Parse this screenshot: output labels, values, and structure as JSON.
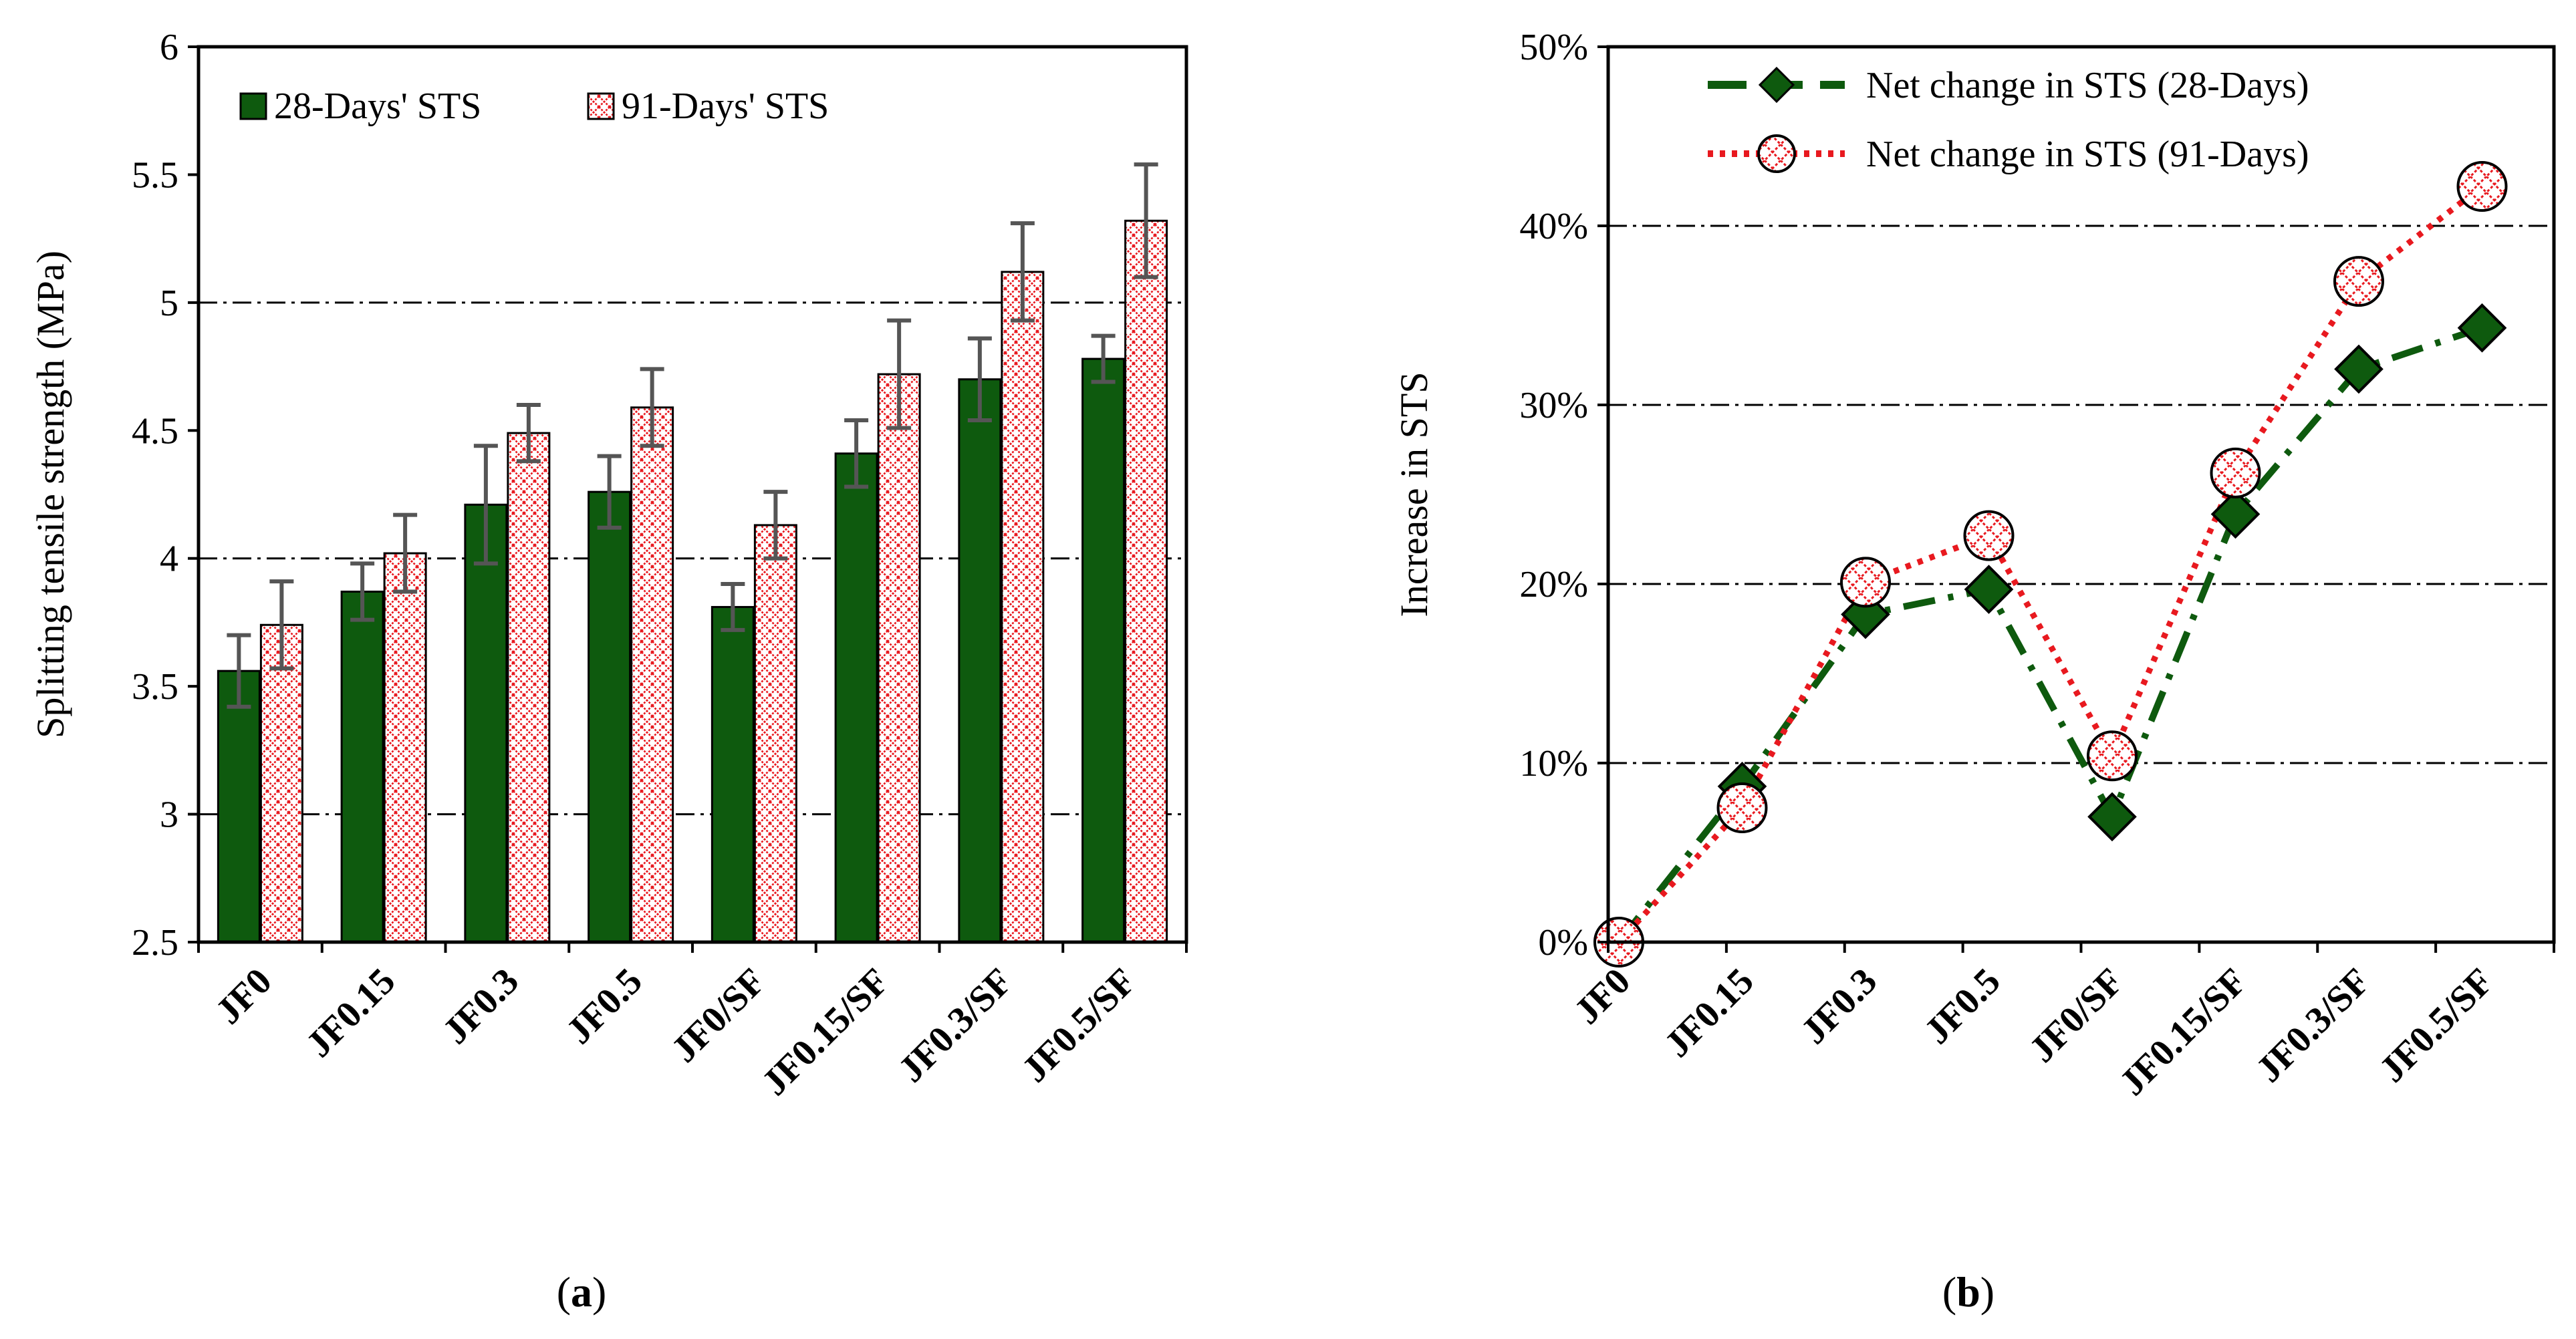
{
  "chart_data": [
    {
      "type": "bar",
      "title": "",
      "caption_letter": "a",
      "xlabel": "",
      "ylabel": "Splitting tensile strength (MPa)",
      "ylim": [
        2.5,
        6
      ],
      "yticks": [
        2.5,
        3,
        3.5,
        4,
        4.5,
        5,
        5.5,
        6
      ],
      "ytick_labels": [
        "2.5",
        "3",
        "3.5",
        "4",
        "4.5",
        "5",
        "5.5",
        "6"
      ],
      "grid": true,
      "legend_position": "top-left",
      "categories": [
        "JF0",
        "JF0.15",
        "JF0.3",
        "JF0.5",
        "JF0/SF",
        "JF0.15/SF",
        "JF0.3/SF",
        "JF0.5/SF"
      ],
      "series": [
        {
          "name": "28-Days' STS",
          "color": "#0e5a0e",
          "values": [
            3.56,
            3.87,
            4.21,
            4.26,
            3.81,
            4.41,
            4.7,
            4.78
          ],
          "error": [
            0.14,
            0.11,
            0.23,
            0.14,
            0.09,
            0.13,
            0.16,
            0.09
          ]
        },
        {
          "name": "91-Days' STS",
          "color": "#e8191f",
          "values": [
            3.74,
            4.02,
            4.49,
            4.59,
            4.13,
            4.72,
            5.12,
            5.32
          ],
          "error": [
            0.17,
            0.15,
            0.11,
            0.15,
            0.13,
            0.21,
            0.19,
            0.22
          ]
        }
      ]
    },
    {
      "type": "line",
      "title": "",
      "caption_letter": "b",
      "xlabel": "",
      "ylabel": "Increase in STS",
      "ylim": [
        0,
        50
      ],
      "yticks": [
        0,
        10,
        20,
        30,
        40,
        50
      ],
      "ytick_labels": [
        "0%",
        "10%",
        "20%",
        "30%",
        "40%",
        "50%"
      ],
      "grid": true,
      "legend_position": "top-right",
      "categories": [
        "JF0",
        "JF0.15",
        "JF0.3",
        "JF0.5",
        "JF0/SF",
        "JF0.15/SF",
        "JF0.3/SF",
        "JF0.5/SF"
      ],
      "series": [
        {
          "name": "Net change in STS (28-Days)",
          "color": "#0e5a0e",
          "marker": "diamond",
          "values": [
            0,
            8.7,
            18.3,
            19.7,
            7.0,
            23.9,
            32.0,
            34.3
          ]
        },
        {
          "name": "Net change in STS (91-Days)",
          "color": "#e8191f",
          "marker": "circle",
          "values": [
            0,
            7.5,
            20.1,
            22.7,
            10.4,
            26.2,
            36.9,
            42.2
          ]
        }
      ]
    }
  ]
}
